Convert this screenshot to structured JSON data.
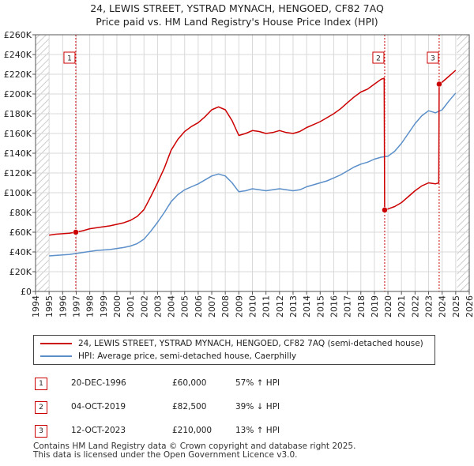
{
  "title_line1": "24, LEWIS STREET, YSTRAD MYNACH, HENGOED, CF82 7AQ",
  "title_line2": "Price paid vs. HM Land Registry's House Price Index (HPI)",
  "legend": {
    "property": "24, LEWIS STREET, YSTRAD MYNACH, HENGOED, CF82 7AQ (semi-detached house)",
    "hpi": "HPI: Average price, semi-detached house, Caerphilly"
  },
  "transactions": [
    {
      "num": "1",
      "date": "20-DEC-1996",
      "price": "£60,000",
      "hpi": "57% ↑ HPI"
    },
    {
      "num": "2",
      "date": "04-OCT-2019",
      "price": "£82,500",
      "hpi": "39% ↓ HPI"
    },
    {
      "num": "3",
      "date": "12-OCT-2023",
      "price": "£210,000",
      "hpi": "13% ↑ HPI"
    }
  ],
  "footer_line1": "Contains HM Land Registry data © Crown copyright and database right 2025.",
  "footer_line2": "This data is licensed under the Open Government Licence v3.0.",
  "colors": {
    "property": "#cc0000",
    "hpi": "#5b8fc9",
    "hatch": "#cccccc",
    "vline": "#cc0000"
  },
  "chart_data": {
    "type": "line",
    "xlim": [
      1994,
      2026
    ],
    "ylim": [
      0,
      260000
    ],
    "x_ticks": [
      1994,
      1995,
      1996,
      1997,
      1998,
      1999,
      2000,
      2001,
      2002,
      2003,
      2004,
      2005,
      2006,
      2007,
      2008,
      2009,
      2010,
      2011,
      2012,
      2013,
      2014,
      2015,
      2016,
      2017,
      2018,
      2019,
      2020,
      2021,
      2022,
      2023,
      2024,
      2025,
      2026
    ],
    "y_ticks": [
      0,
      20000,
      40000,
      60000,
      80000,
      100000,
      120000,
      140000,
      160000,
      180000,
      200000,
      220000,
      240000,
      260000
    ],
    "y_tick_labels": [
      "£0",
      "£20K",
      "£40K",
      "£60K",
      "£80K",
      "£100K",
      "£120K",
      "£140K",
      "£160K",
      "£180K",
      "£200K",
      "£220K",
      "£240K",
      "£260K"
    ],
    "hatched_before": 1995.0,
    "hatched_after": 2025.1,
    "sale_markers": [
      {
        "label": "1",
        "x": 1996.97,
        "y": 60000
      },
      {
        "label": "2",
        "x": 2019.76,
        "y": 82500
      },
      {
        "label": "3",
        "x": 2023.78,
        "y": 210000
      }
    ],
    "series": [
      {
        "name": "HPI: Average price, semi-detached house, Caerphilly",
        "x": [
          1995.0,
          1995.5,
          1996.0,
          1996.5,
          1997.0,
          1997.5,
          1998.0,
          1998.5,
          1999.0,
          1999.5,
          2000.0,
          2000.5,
          2001.0,
          2001.5,
          2002.0,
          2002.5,
          2003.0,
          2003.5,
          2004.0,
          2004.5,
          2005.0,
          2005.5,
          2006.0,
          2006.5,
          2007.0,
          2007.5,
          2008.0,
          2008.5,
          2009.0,
          2009.5,
          2010.0,
          2010.5,
          2011.0,
          2011.5,
          2012.0,
          2012.5,
          2013.0,
          2013.5,
          2014.0,
          2014.5,
          2015.0,
          2015.5,
          2016.0,
          2016.5,
          2017.0,
          2017.5,
          2018.0,
          2018.5,
          2019.0,
          2019.5,
          2020.0,
          2020.5,
          2021.0,
          2021.5,
          2022.0,
          2022.5,
          2023.0,
          2023.5,
          2024.0,
          2024.5,
          2025.0
        ],
        "values": [
          36000,
          36500,
          37000,
          37500,
          38500,
          39500,
          40500,
          41500,
          42000,
          42500,
          43500,
          44500,
          46000,
          48500,
          53000,
          61000,
          70000,
          80000,
          91000,
          98000,
          103000,
          106000,
          109000,
          113000,
          117000,
          119000,
          117000,
          110000,
          101000,
          102000,
          104000,
          103000,
          102000,
          103000,
          104000,
          103000,
          102000,
          103000,
          106000,
          108000,
          110000,
          112000,
          115000,
          118000,
          122000,
          126000,
          129000,
          131000,
          134000,
          136000,
          137000,
          142000,
          150000,
          160000,
          170000,
          178000,
          183000,
          181000,
          184000,
          193000,
          201000
        ]
      },
      {
        "name": "24, LEWIS STREET, YSTRAD MYNACH, HENGOED, CF82 7AQ (semi-detached house)",
        "x": [
          1995.0,
          1995.5,
          1996.0,
          1996.5,
          1996.97,
          1997.5,
          1998.0,
          1998.5,
          1999.0,
          1999.5,
          2000.0,
          2000.5,
          2001.0,
          2001.5,
          2002.0,
          2002.5,
          2003.0,
          2003.5,
          2004.0,
          2004.5,
          2005.0,
          2005.5,
          2006.0,
          2006.5,
          2007.0,
          2007.5,
          2008.0,
          2008.5,
          2009.0,
          2009.5,
          2010.0,
          2010.5,
          2011.0,
          2011.5,
          2012.0,
          2012.5,
          2013.0,
          2013.5,
          2014.0,
          2014.5,
          2015.0,
          2015.5,
          2016.0,
          2016.5,
          2017.0,
          2017.5,
          2018.0,
          2018.5,
          2019.0,
          2019.5,
          2019.72,
          2019.76,
          2020.0,
          2020.5,
          2021.0,
          2021.5,
          2022.0,
          2022.5,
          2023.0,
          2023.5,
          2023.75,
          2023.78,
          2024.0,
          2024.5,
          2025.0
        ],
        "values": [
          57000,
          58000,
          58500,
          59000,
          60000,
          61500,
          63500,
          64500,
          65500,
          66500,
          68000,
          69500,
          72000,
          76000,
          83000,
          96000,
          110000,
          125000,
          143000,
          154000,
          162000,
          167000,
          171000,
          177000,
          184000,
          187000,
          184000,
          173000,
          158000,
          160000,
          163000,
          162000,
          160000,
          161000,
          163000,
          161000,
          160000,
          162000,
          166000,
          169000,
          172000,
          176000,
          180000,
          185000,
          191000,
          197000,
          202000,
          205000,
          210000,
          215000,
          216000,
          82500,
          83500,
          86000,
          90000,
          96000,
          102000,
          107000,
          110000,
          109000,
          110000,
          210000,
          212000,
          218000,
          224000
        ]
      }
    ]
  }
}
